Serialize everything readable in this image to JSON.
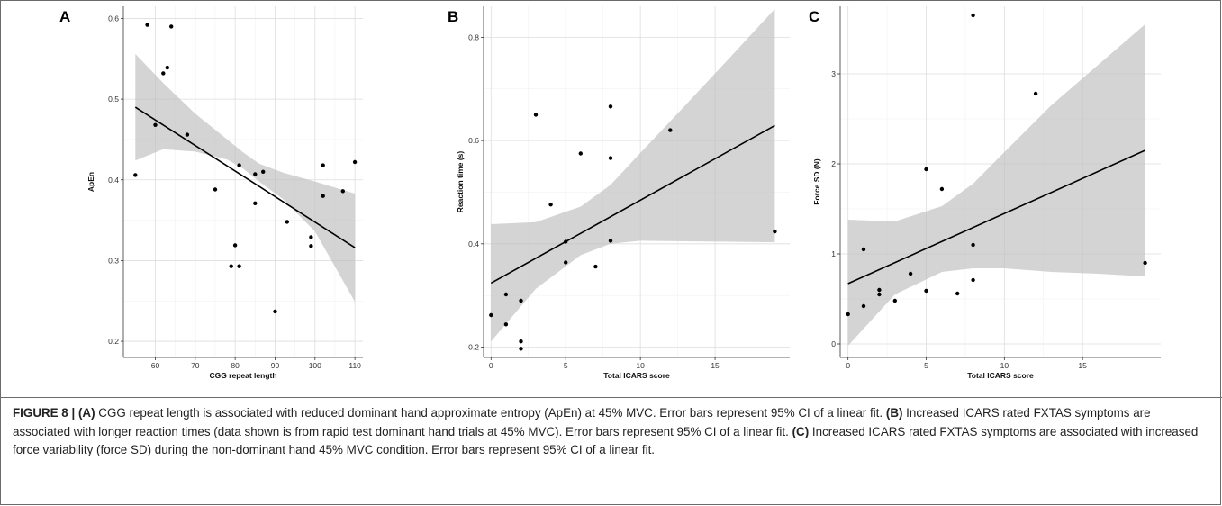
{
  "chart_data": [
    {
      "type": "scatter",
      "panel_label": "A",
      "xlabel": "CGG repeat length",
      "ylabel": "ApEn",
      "xlim": [
        52,
        112
      ],
      "ylim": [
        0.18,
        0.615
      ],
      "xticks": [
        60,
        70,
        80,
        90,
        100,
        110
      ],
      "yticks": [
        0.2,
        0.3,
        0.4,
        0.5,
        0.6
      ],
      "grid": true,
      "points": [
        [
          55,
          0.406
        ],
        [
          58,
          0.592
        ],
        [
          60,
          0.468
        ],
        [
          62,
          0.532
        ],
        [
          63,
          0.539
        ],
        [
          64,
          0.59
        ],
        [
          68,
          0.456
        ],
        [
          75,
          0.388
        ],
        [
          79,
          0.293
        ],
        [
          80,
          0.319
        ],
        [
          81,
          0.418
        ],
        [
          81,
          0.293
        ],
        [
          85,
          0.407
        ],
        [
          85,
          0.371
        ],
        [
          87,
          0.41
        ],
        [
          90,
          0.237
        ],
        [
          93,
          0.348
        ],
        [
          99,
          0.329
        ],
        [
          99,
          0.318
        ],
        [
          102,
          0.418
        ],
        [
          102,
          0.38
        ],
        [
          107,
          0.386
        ],
        [
          110,
          0.422
        ]
      ],
      "fit_line": [
        [
          55,
          0.49
        ],
        [
          110,
          0.316
        ]
      ],
      "ci_band": {
        "x": [
          55,
          62,
          70,
          78,
          82,
          86,
          92,
          100,
          110
        ],
        "upper": [
          0.556,
          0.52,
          0.482,
          0.45,
          0.434,
          0.42,
          0.409,
          0.398,
          0.383
        ],
        "lower": [
          0.424,
          0.438,
          0.435,
          0.425,
          0.414,
          0.398,
          0.376,
          0.336,
          0.249
        ]
      }
    },
    {
      "type": "scatter",
      "panel_label": "B",
      "xlabel": "Total ICARS score",
      "ylabel": "Reaction time (s)",
      "xlim": [
        -0.5,
        20
      ],
      "ylim": [
        0.18,
        0.86
      ],
      "xticks": [
        0,
        5,
        10,
        15
      ],
      "yticks": [
        0.2,
        0.4,
        0.6,
        0.8
      ],
      "grid": true,
      "points": [
        [
          0,
          0.262
        ],
        [
          1,
          0.302
        ],
        [
          1,
          0.244
        ],
        [
          2,
          0.29
        ],
        [
          2,
          0.211
        ],
        [
          2,
          0.197
        ],
        [
          3,
          0.65
        ],
        [
          4,
          0.476
        ],
        [
          5,
          0.404
        ],
        [
          5,
          0.364
        ],
        [
          6,
          0.575
        ],
        [
          7,
          0.356
        ],
        [
          8,
          0.666
        ],
        [
          8,
          0.566
        ],
        [
          8,
          0.406
        ],
        [
          12,
          0.62
        ],
        [
          19,
          0.424
        ]
      ],
      "fit_line": [
        [
          0,
          0.324
        ],
        [
          19,
          0.629
        ]
      ],
      "ci_band": {
        "x": [
          0,
          3,
          6,
          8,
          10,
          13,
          16,
          19
        ],
        "upper": [
          0.438,
          0.442,
          0.472,
          0.514,
          0.576,
          0.668,
          0.761,
          0.855
        ],
        "lower": [
          0.211,
          0.313,
          0.378,
          0.4,
          0.406,
          0.405,
          0.404,
          0.403
        ]
      }
    },
    {
      "type": "scatter",
      "panel_label": "C",
      "xlabel": "Total ICARS score",
      "ylabel": "Force SD (N)",
      "xlim": [
        -0.5,
        20
      ],
      "ylim": [
        -0.15,
        3.75
      ],
      "xticks": [
        0,
        5,
        10,
        15
      ],
      "yticks": [
        0,
        1,
        2,
        3
      ],
      "grid": true,
      "points": [
        [
          0,
          0.33
        ],
        [
          1,
          1.05
        ],
        [
          1,
          0.42
        ],
        [
          2,
          0.6
        ],
        [
          2,
          0.55
        ],
        [
          3,
          0.48
        ],
        [
          4,
          0.78
        ],
        [
          5,
          1.94
        ],
        [
          5,
          0.59
        ],
        [
          6,
          1.72
        ],
        [
          7,
          0.56
        ],
        [
          8,
          3.65
        ],
        [
          8,
          1.1
        ],
        [
          8,
          0.71
        ],
        [
          12,
          2.78
        ],
        [
          19,
          0.9
        ]
      ],
      "fit_line": [
        [
          0,
          0.67
        ],
        [
          19,
          2.15
        ]
      ],
      "ci_band": {
        "x": [
          0,
          3,
          6,
          8,
          10,
          13,
          16,
          19
        ],
        "upper": [
          1.38,
          1.36,
          1.53,
          1.78,
          2.13,
          2.65,
          3.1,
          3.55
        ],
        "lower": [
          -0.02,
          0.55,
          0.8,
          0.84,
          0.84,
          0.8,
          0.78,
          0.75
        ]
      }
    }
  ],
  "caption": {
    "figure_label": "FIGURE 8 |",
    "part_a_label": "(A)",
    "part_a_text": " CGG repeat length is associated with reduced dominant hand approximate entropy (ApEn) at 45% MVC. Error bars represent 95% CI of a linear fit.",
    "part_b_label": "(B)",
    "part_b_text": " Increased ICARS rated FXTAS symptoms are associated with longer reaction times (data shown is from rapid test dominant hand trials at 45% MVC). Error bars represent 95% CI of a linear fit.",
    "part_c_label": "(C)",
    "part_c_text": " Increased ICARS rated FXTAS symptoms are associated with increased force variability (force SD) during the non-dominant hand 45% MVC condition. Error bars represent 95% CI of a linear fit."
  }
}
